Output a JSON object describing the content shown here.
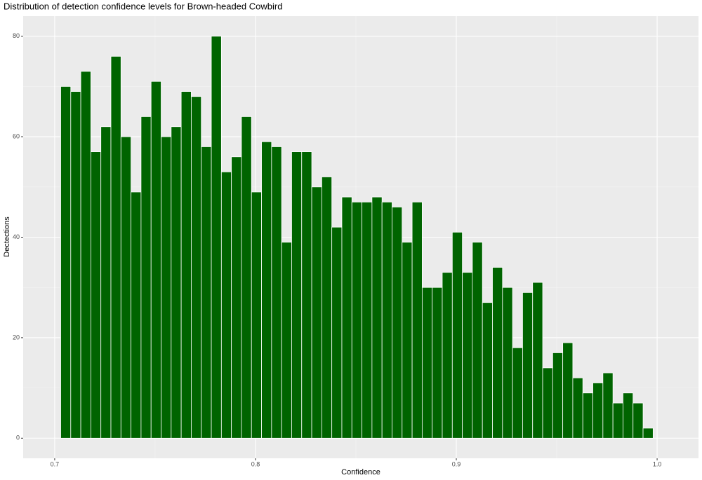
{
  "chart_data": {
    "type": "histogram",
    "title": "Distribution of detection confidence levels for Brown-headed Cowbird",
    "x_label": "Confidence",
    "y_label": "Dectections",
    "bins": [
      0.703,
      0.708,
      0.713,
      0.718,
      0.723,
      0.728,
      0.733,
      0.738,
      0.743,
      0.748,
      0.753,
      0.758,
      0.763,
      0.768,
      0.773,
      0.778,
      0.783,
      0.788,
      0.793,
      0.798,
      0.803,
      0.808,
      0.813,
      0.818,
      0.823,
      0.828,
      0.833,
      0.838,
      0.843,
      0.848,
      0.853,
      0.858,
      0.863,
      0.868,
      0.873,
      0.878,
      0.883,
      0.888,
      0.893,
      0.898,
      0.903,
      0.908,
      0.913,
      0.918,
      0.923,
      0.928,
      0.933,
      0.938,
      0.943,
      0.948,
      0.953,
      0.958,
      0.963,
      0.968,
      0.973,
      0.978,
      0.983,
      0.988,
      0.993,
      0.998
    ],
    "values": [
      70,
      69,
      73,
      57,
      62,
      76,
      60,
      49,
      64,
      71,
      60,
      62,
      69,
      68,
      58,
      80,
      53,
      56,
      64,
      49,
      59,
      58,
      39,
      57,
      57,
      50,
      52,
      42,
      48,
      47,
      47,
      48,
      47,
      46,
      39,
      47,
      30,
      30,
      33,
      41,
      33,
      39,
      27,
      34,
      30,
      18,
      29,
      31,
      14,
      17,
      19,
      12,
      9,
      11,
      13,
      7,
      9,
      7,
      2
    ],
    "color": "#006400",
    "xlim": [
      0.6843,
      1.0206
    ],
    "xticks": [
      0.7,
      0.8,
      0.9,
      {
        "value": 1,
        "label": "1.0"
      }
    ],
    "ylim": [
      -4,
      84
    ],
    "yticks": [
      0,
      20,
      40,
      60,
      80
    ],
    "grid": true
  }
}
